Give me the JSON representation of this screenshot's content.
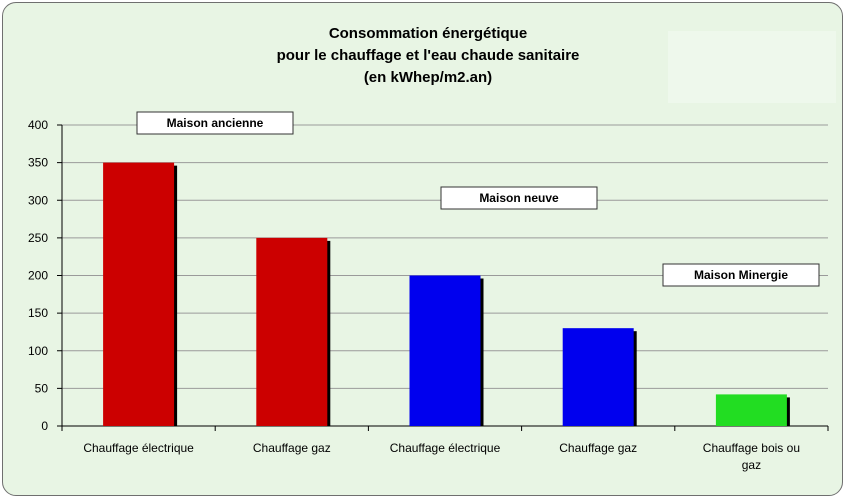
{
  "chart_data": {
    "type": "bar",
    "title": [
      "Consommation énergétique",
      "pour le chauffage et l'eau chaude sanitaire",
      "(en kWhep/m2.an)"
    ],
    "categories": [
      [
        "Chauffage électrique"
      ],
      [
        "Chauffage gaz"
      ],
      [
        "Chauffage électrique"
      ],
      [
        "Chauffage gaz"
      ],
      [
        "Chauffage bois ou",
        "gaz"
      ]
    ],
    "values": [
      350,
      250,
      200,
      130,
      42
    ],
    "bar_colors": [
      "#cc0000",
      "#cc0000",
      "#0000ee",
      "#0000ee",
      "#22dd22"
    ],
    "ylim": [
      0,
      400
    ],
    "yticks": [
      0,
      50,
      100,
      150,
      200,
      250,
      300,
      350,
      400
    ],
    "grid": true,
    "annotations": [
      {
        "text": "Maison ancienne"
      },
      {
        "text": "Maison neuve"
      },
      {
        "text": "Maison Minergie"
      }
    ]
  }
}
